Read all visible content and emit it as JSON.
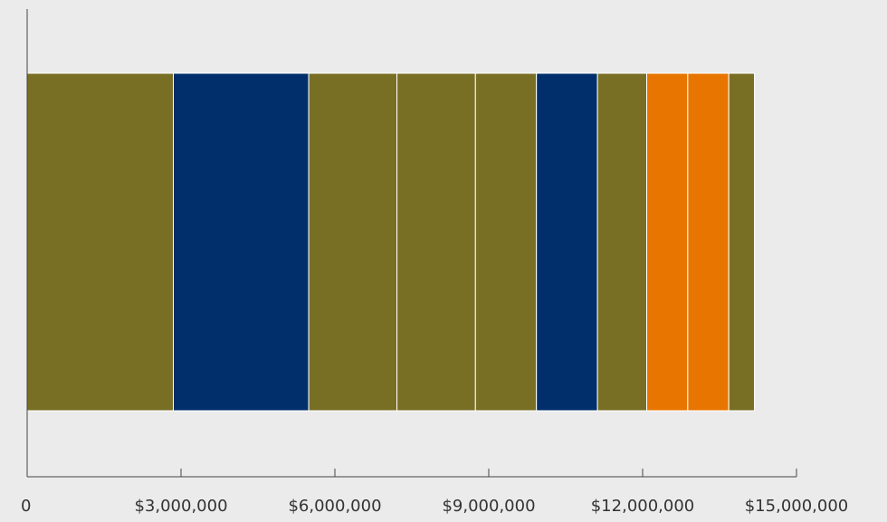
{
  "chart_data": {
    "type": "bar",
    "orientation": "horizontal",
    "stacked": true,
    "title": "",
    "xlabel": "",
    "ylabel": "",
    "xlim": [
      0,
      15000000
    ],
    "x_ticks": [
      {
        "value": 0,
        "label": "0"
      },
      {
        "value": 3000000,
        "label": "$3,000,000"
      },
      {
        "value": 6000000,
        "label": "$6,000,000"
      },
      {
        "value": 9000000,
        "label": "$9,000,000"
      },
      {
        "value": 12000000,
        "label": "$12,000,000"
      },
      {
        "value": 15000000,
        "label": "$15,000,000"
      }
    ],
    "grid": false,
    "legend": "none",
    "segments": [
      {
        "value": 2850000,
        "color": "#786f25"
      },
      {
        "value": 2640000,
        "color": "#002f6c"
      },
      {
        "value": 1720000,
        "color": "#786f25"
      },
      {
        "value": 1530000,
        "color": "#786f25"
      },
      {
        "value": 1190000,
        "color": "#786f25"
      },
      {
        "value": 1190000,
        "color": "#002f6c"
      },
      {
        "value": 960000,
        "color": "#786f25"
      },
      {
        "value": 800000,
        "color": "#e87500"
      },
      {
        "value": 800000,
        "color": "#e87500"
      },
      {
        "value": 500000,
        "color": "#786f25"
      }
    ]
  }
}
